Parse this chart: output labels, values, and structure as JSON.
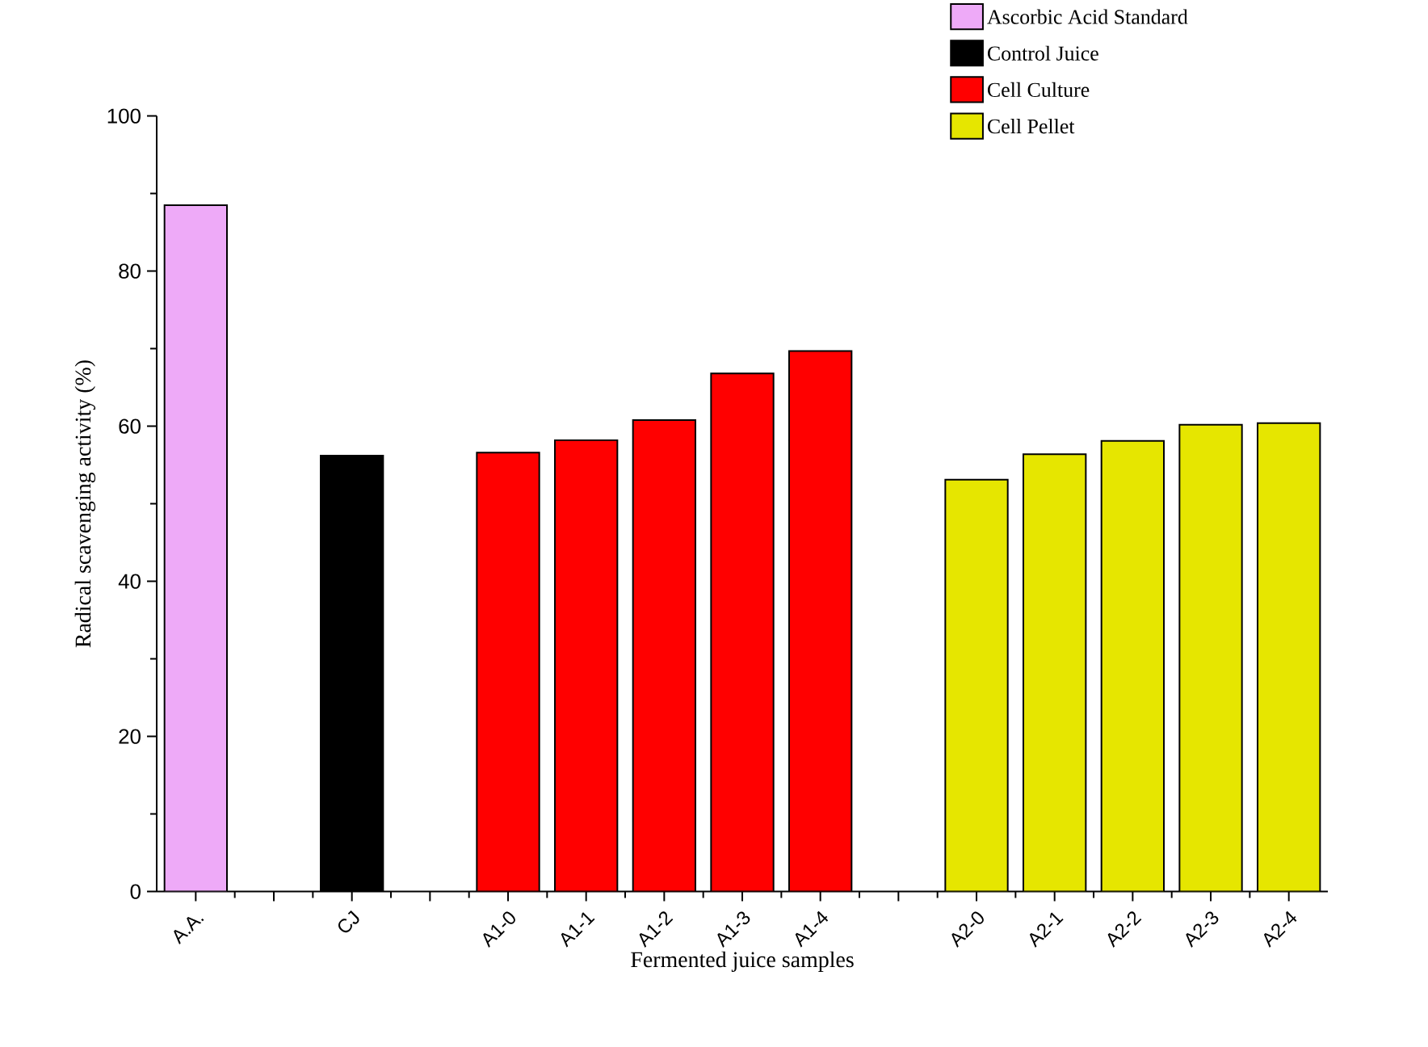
{
  "chart_data": {
    "type": "bar",
    "xlabel": "Fermented juice samples",
    "ylabel": "Radical scavenging activity (%)",
    "categories": [
      "A.A.",
      null,
      "CJ",
      null,
      "A1-0",
      "A1-1",
      "A1-2",
      "A1-3",
      "A1-4",
      null,
      "A2-0",
      "A2-1",
      "A2-2",
      "A2-3",
      "A2-4"
    ],
    "series": [
      {
        "name": "Ascorbic Acid Standard",
        "color": "#eeaaf8",
        "values": [
          88.5,
          null,
          null,
          null,
          null,
          null,
          null,
          null,
          null,
          null,
          null,
          null,
          null,
          null,
          null
        ]
      },
      {
        "name": "Control Juice",
        "color": "#000000",
        "values": [
          null,
          null,
          56.2,
          null,
          null,
          null,
          null,
          null,
          null,
          null,
          null,
          null,
          null,
          null,
          null
        ]
      },
      {
        "name": "Cell Culture",
        "color": "#ff0000",
        "values": [
          null,
          null,
          null,
          null,
          56.6,
          58.2,
          60.8,
          66.8,
          69.7,
          null,
          null,
          null,
          null,
          null,
          null
        ]
      },
      {
        "name": "Cell Pellet",
        "color": "#e6e600",
        "values": [
          null,
          null,
          null,
          null,
          null,
          null,
          null,
          null,
          null,
          null,
          53.1,
          56.4,
          58.1,
          60.2,
          60.4
        ]
      }
    ],
    "ylim": [
      0,
      100
    ],
    "yticks": [
      0,
      20,
      40,
      60,
      80,
      100
    ],
    "legend": "top right",
    "grid": false
  }
}
